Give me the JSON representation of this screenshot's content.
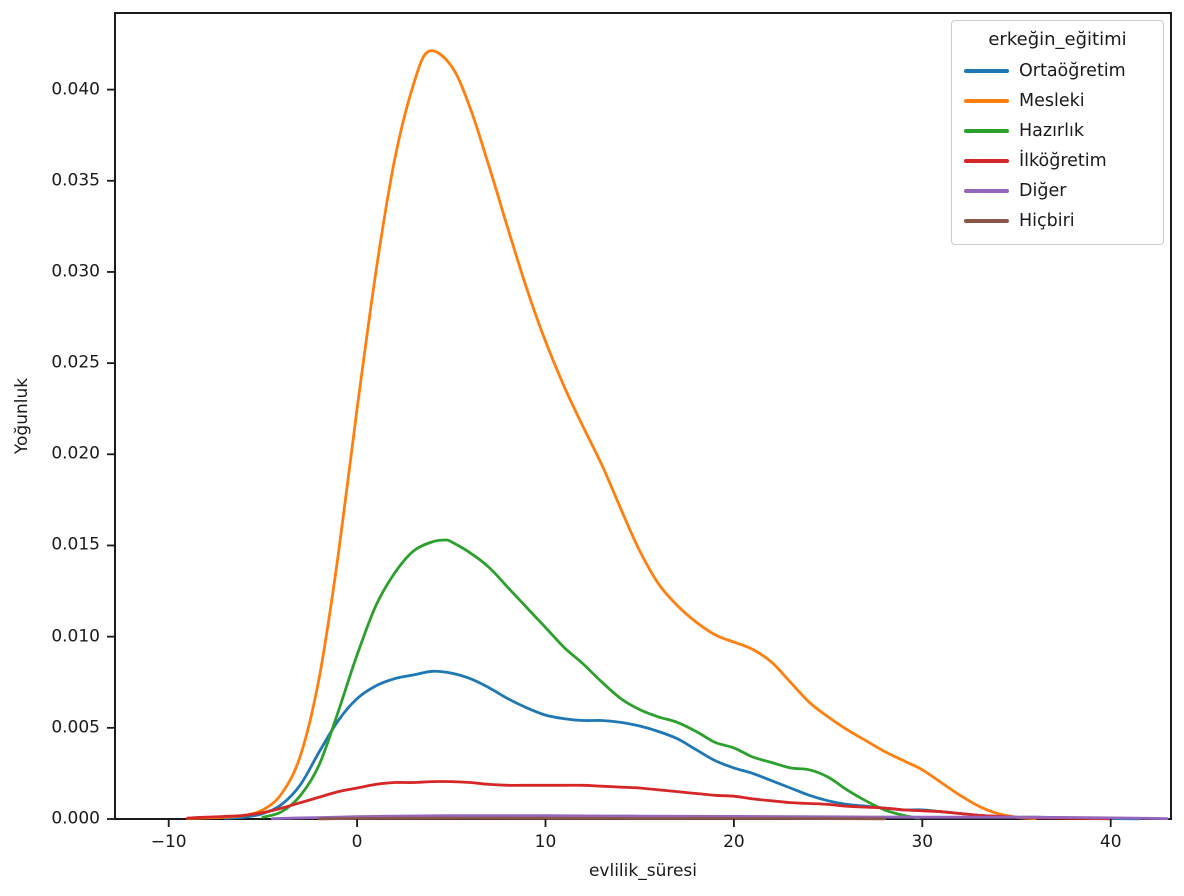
{
  "chart_data": {
    "type": "line",
    "subtype": "kde-density",
    "title": "",
    "xlabel": "evlilik_süresi",
    "ylabel": "Yoğunluk",
    "legend_title": "erkeğin_eğitimi",
    "legend_position": "upper right",
    "grid": false,
    "background": "#ffffff",
    "spine_color": "#1a1a1a",
    "xlim": [
      -12.85,
      43.2
    ],
    "ylim": [
      0,
      0.0442
    ],
    "xticks": [
      -10,
      0,
      10,
      20,
      30,
      40
    ],
    "xtick_labels": [
      "−10",
      "0",
      "10",
      "20",
      "30",
      "40"
    ],
    "yticks": [
      0,
      0.005,
      0.01,
      0.015,
      0.02,
      0.025,
      0.03,
      0.035,
      0.04
    ],
    "ytick_labels": [
      "0.000",
      "0.005",
      "0.010",
      "0.015",
      "0.020",
      "0.025",
      "0.030",
      "0.035",
      "0.040"
    ],
    "series": [
      {
        "name": "Ortaöğretim",
        "color": "#1f77b4",
        "peak": {
          "x": 4.5,
          "y": 0.0081
        },
        "points": [
          [
            -7,
            5e-05
          ],
          [
            -6,
            0.0001
          ],
          [
            -5,
            0.0003
          ],
          [
            -4,
            0.0008
          ],
          [
            -3,
            0.0019
          ],
          [
            -2,
            0.0037
          ],
          [
            -1,
            0.0054
          ],
          [
            0,
            0.0066
          ],
          [
            1,
            0.0073
          ],
          [
            2,
            0.0077
          ],
          [
            3,
            0.0079
          ],
          [
            4,
            0.0081
          ],
          [
            5,
            0.008
          ],
          [
            6,
            0.0077
          ],
          [
            7,
            0.0072
          ],
          [
            8,
            0.0066
          ],
          [
            9,
            0.0061
          ],
          [
            10,
            0.0057
          ],
          [
            11,
            0.0055
          ],
          [
            12,
            0.0054
          ],
          [
            13,
            0.0054
          ],
          [
            14,
            0.0053
          ],
          [
            15,
            0.0051
          ],
          [
            16,
            0.0048
          ],
          [
            17,
            0.0044
          ],
          [
            18,
            0.0038
          ],
          [
            19,
            0.0032
          ],
          [
            20,
            0.0028
          ],
          [
            21,
            0.0025
          ],
          [
            22,
            0.0021
          ],
          [
            23,
            0.0017
          ],
          [
            24,
            0.0013
          ],
          [
            25,
            0.001
          ],
          [
            26,
            0.0008
          ],
          [
            27,
            0.0007
          ],
          [
            28,
            0.0006
          ],
          [
            29,
            0.0005
          ],
          [
            30,
            0.0005
          ],
          [
            31,
            0.0004
          ],
          [
            32,
            0.0003
          ],
          [
            33,
            0.0002
          ],
          [
            34,
            0.00015
          ],
          [
            35,
            0.0001
          ],
          [
            36,
            0.0001
          ],
          [
            38,
            6e-05
          ],
          [
            40,
            3e-05
          ],
          [
            41.5,
            1e-05
          ]
        ]
      },
      {
        "name": "Mesleki",
        "color": "#ff7f0e",
        "peak": {
          "x": 3.8,
          "y": 0.0421
        },
        "points": [
          [
            -9,
            3e-05
          ],
          [
            -8,
            6e-05
          ],
          [
            -7,
            0.0001
          ],
          [
            -6,
            0.0002
          ],
          [
            -5,
            0.0005
          ],
          [
            -4,
            0.0014
          ],
          [
            -3,
            0.0035
          ],
          [
            -2,
            0.0078
          ],
          [
            -1,
            0.0145
          ],
          [
            0,
            0.0225
          ],
          [
            1,
            0.03
          ],
          [
            2,
            0.0362
          ],
          [
            3,
            0.0403
          ],
          [
            3.8,
            0.0421
          ],
          [
            5,
            0.0413
          ],
          [
            6,
            0.039
          ],
          [
            7,
            0.0358
          ],
          [
            8,
            0.0324
          ],
          [
            9,
            0.0291
          ],
          [
            10,
            0.0262
          ],
          [
            11,
            0.0237
          ],
          [
            12,
            0.0215
          ],
          [
            13,
            0.0194
          ],
          [
            14,
            0.017
          ],
          [
            15,
            0.0147
          ],
          [
            16,
            0.0129
          ],
          [
            17,
            0.0117
          ],
          [
            18,
            0.0108
          ],
          [
            19,
            0.0101
          ],
          [
            20,
            0.0097
          ],
          [
            21,
            0.0093
          ],
          [
            22,
            0.0086
          ],
          [
            23,
            0.0075
          ],
          [
            24,
            0.0064
          ],
          [
            25,
            0.0056
          ],
          [
            26,
            0.0049
          ],
          [
            27,
            0.0043
          ],
          [
            28,
            0.0037
          ],
          [
            29,
            0.0032
          ],
          [
            30,
            0.0027
          ],
          [
            31,
            0.002
          ],
          [
            32,
            0.0013
          ],
          [
            33,
            0.0007
          ],
          [
            34,
            0.0003
          ],
          [
            35,
            0.0001
          ],
          [
            36,
            2e-05
          ]
        ]
      },
      {
        "name": "Hazırlık",
        "color": "#2ca02c",
        "peak": {
          "x": 4.7,
          "y": 0.0153
        },
        "points": [
          [
            -5,
            0.0001
          ],
          [
            -4,
            0.0004
          ],
          [
            -3,
            0.0013
          ],
          [
            -2,
            0.003
          ],
          [
            -1,
            0.0059
          ],
          [
            0,
            0.009
          ],
          [
            1,
            0.0117
          ],
          [
            2,
            0.0135
          ],
          [
            3,
            0.0147
          ],
          [
            4,
            0.0152
          ],
          [
            4.7,
            0.0153
          ],
          [
            5,
            0.0152
          ],
          [
            6,
            0.0146
          ],
          [
            7,
            0.0138
          ],
          [
            8,
            0.0127
          ],
          [
            9,
            0.0116
          ],
          [
            10,
            0.0105
          ],
          [
            11,
            0.0094
          ],
          [
            12,
            0.0085
          ],
          [
            13,
            0.0075
          ],
          [
            14,
            0.0066
          ],
          [
            15,
            0.006
          ],
          [
            16,
            0.0056
          ],
          [
            17,
            0.0053
          ],
          [
            18,
            0.0048
          ],
          [
            19,
            0.0042
          ],
          [
            20,
            0.0039
          ],
          [
            21,
            0.0034
          ],
          [
            22,
            0.0031
          ],
          [
            23,
            0.0028
          ],
          [
            24,
            0.0027
          ],
          [
            25,
            0.0023
          ],
          [
            26,
            0.0016
          ],
          [
            27,
            0.001
          ],
          [
            28,
            0.0005
          ],
          [
            29,
            0.0002
          ],
          [
            29.8,
            5e-05
          ]
        ]
      },
      {
        "name": "İlköğretim",
        "color": "#d62728",
        "peak": {
          "x": 4.5,
          "y": 0.00205
        },
        "points": [
          [
            -9,
            5e-05
          ],
          [
            -8,
            0.0001
          ],
          [
            -7,
            0.00014
          ],
          [
            -6,
            0.0002
          ],
          [
            -5,
            0.00035
          ],
          [
            -4,
            0.0006
          ],
          [
            -3,
            0.0009
          ],
          [
            -2,
            0.0012
          ],
          [
            -1,
            0.0015
          ],
          [
            0,
            0.0017
          ],
          [
            1,
            0.0019
          ],
          [
            2,
            0.002
          ],
          [
            3,
            0.002
          ],
          [
            4,
            0.00205
          ],
          [
            5,
            0.00205
          ],
          [
            6,
            0.002
          ],
          [
            7,
            0.0019
          ],
          [
            8,
            0.00185
          ],
          [
            9,
            0.00185
          ],
          [
            10,
            0.00185
          ],
          [
            11,
            0.00185
          ],
          [
            12,
            0.00185
          ],
          [
            13,
            0.0018
          ],
          [
            14,
            0.00175
          ],
          [
            15,
            0.0017
          ],
          [
            16,
            0.0016
          ],
          [
            17,
            0.0015
          ],
          [
            18,
            0.0014
          ],
          [
            19,
            0.0013
          ],
          [
            20,
            0.00125
          ],
          [
            21,
            0.0011
          ],
          [
            22,
            0.001
          ],
          [
            23,
            0.0009
          ],
          [
            24,
            0.00085
          ],
          [
            25,
            0.0008
          ],
          [
            26,
            0.0007
          ],
          [
            27,
            0.00065
          ],
          [
            28,
            0.0006
          ],
          [
            29,
            0.0005
          ],
          [
            30,
            0.00045
          ],
          [
            31,
            0.0004
          ],
          [
            32,
            0.0003
          ],
          [
            33,
            0.0002
          ],
          [
            34,
            0.00015
          ],
          [
            35,
            0.0001
          ],
          [
            36,
            7e-05
          ],
          [
            38,
            4e-05
          ],
          [
            40,
            1e-05
          ]
        ]
      },
      {
        "name": "Diğer",
        "color": "#9467bd",
        "peak": {
          "x": 6,
          "y": 0.0002
        },
        "points": [
          [
            -4.5,
            2e-05
          ],
          [
            -3,
            6e-05
          ],
          [
            -1,
            0.0001
          ],
          [
            0,
            0.00013
          ],
          [
            2,
            0.00016
          ],
          [
            5,
            0.00018
          ],
          [
            8,
            0.00018
          ],
          [
            10,
            0.00018
          ],
          [
            15,
            0.00016
          ],
          [
            20,
            0.00014
          ],
          [
            25,
            0.00012
          ],
          [
            30,
            0.0001
          ],
          [
            35,
            0.0001
          ],
          [
            38,
            8e-05
          ],
          [
            40,
            6e-05
          ],
          [
            42,
            4e-05
          ],
          [
            43,
            2e-05
          ]
        ]
      },
      {
        "name": "Hiçbiri",
        "color": "#8c564b",
        "peak": {
          "x": 6,
          "y": 5e-05
        },
        "points": [
          [
            -2,
            1e-05
          ],
          [
            0,
            3e-05
          ],
          [
            3,
            4e-05
          ],
          [
            6,
            5e-05
          ],
          [
            10,
            4e-05
          ],
          [
            15,
            3e-05
          ],
          [
            20,
            3e-05
          ],
          [
            25,
            2e-05
          ],
          [
            28,
            1e-05
          ]
        ]
      }
    ]
  }
}
